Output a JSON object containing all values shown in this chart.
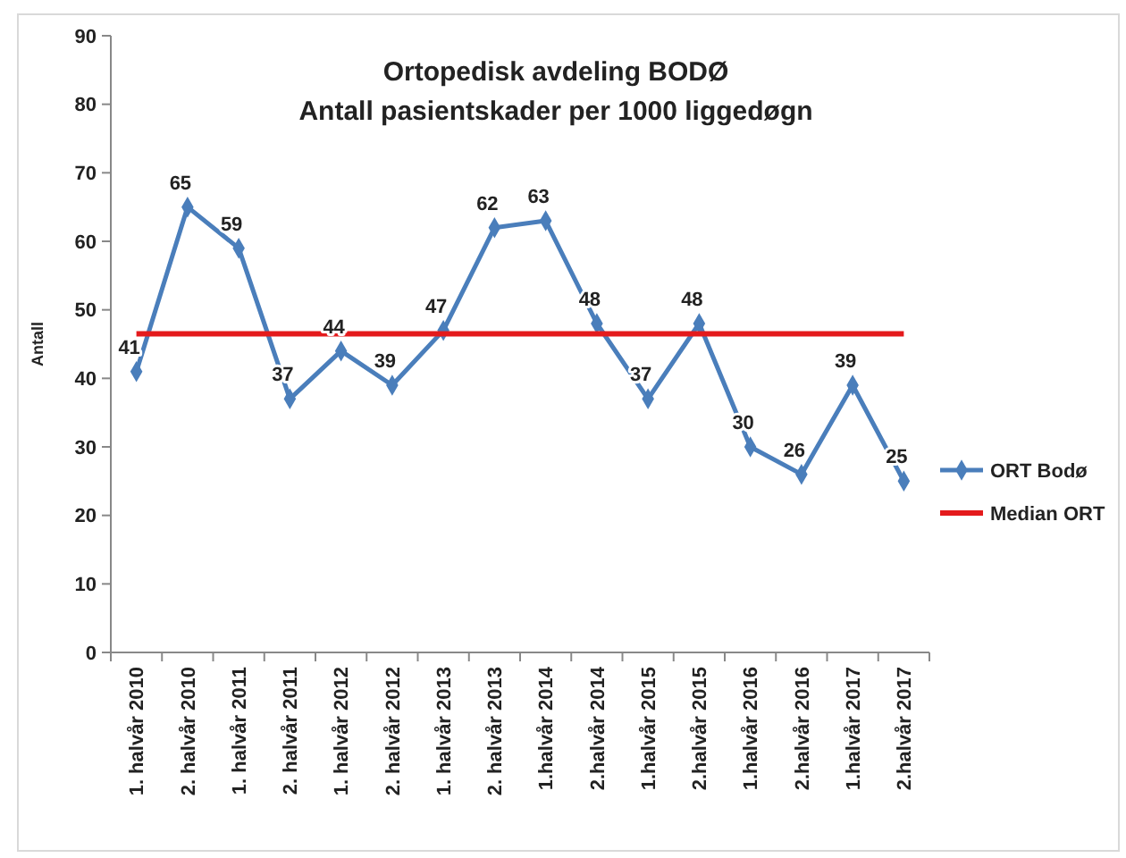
{
  "chart_data": {
    "type": "line",
    "title": "Ortopedisk avdeling BODØ",
    "subtitle": "Antall pasientskader per 1000 liggedøgn",
    "ylabel": "Antall",
    "categories": [
      "1. halvår 2010",
      "2. halvår 2010",
      "1. halvår 2011",
      "2. halvår 2011",
      "1. halvår 2012",
      "2. halvår 2012",
      "1. halvår 2013",
      "2. halvår 2013",
      "1.halvår 2014",
      "2.halvår 2014",
      "1.halvår 2015",
      "2.halvår 2015",
      "1.halvår 2016",
      "2.halvår 2016",
      "1.halvår 2017",
      "2.halvår 2017"
    ],
    "series": [
      {
        "name": "ORT Bodø",
        "color": "#4a7ebb",
        "marker": "diamond",
        "values": [
          41,
          65,
          59,
          37,
          44,
          39,
          47,
          62,
          63,
          48,
          37,
          48,
          30,
          26,
          39,
          25
        ],
        "value_labels": [
          "41",
          "65",
          "59",
          "37",
          "44",
          "39",
          "47",
          "62",
          "63",
          "48",
          "37",
          "48",
          "30",
          "26",
          "39",
          "25"
        ]
      },
      {
        "name": "Median ORT",
        "color": "#e41a1c",
        "marker": "none",
        "values": [
          46.5,
          46.5,
          46.5,
          46.5,
          46.5,
          46.5,
          46.5,
          46.5,
          46.5,
          46.5,
          46.5,
          46.5,
          46.5,
          46.5,
          46.5,
          46.5
        ]
      }
    ],
    "ylim": [
      0,
      90
    ],
    "yticks": [
      0,
      10,
      20,
      30,
      40,
      50,
      60,
      70,
      80,
      90
    ],
    "grid": false,
    "legend": "right"
  }
}
